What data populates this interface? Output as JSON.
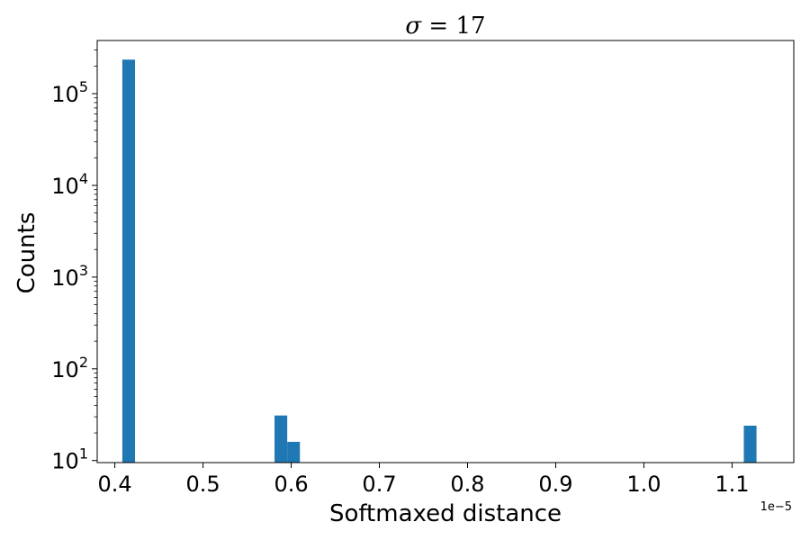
{
  "chart_data": {
    "type": "bar",
    "title": {
      "symbol": "σ",
      "operator": " = ",
      "value": "17"
    },
    "xlabel": "Softmaxed distance",
    "ylabel": "Counts",
    "x_offset_label": "1e−5",
    "xlim": [
      0.38,
      1.17
    ],
    "ylim": [
      9.5,
      380000
    ],
    "yscale": "log",
    "grid": false,
    "bar_color": "#1f77b4",
    "bar_width": 0.0144,
    "bars": [
      {
        "x": 0.4157,
        "count": 235000
      },
      {
        "x": 0.5883,
        "count": 31
      },
      {
        "x": 0.6027,
        "count": 16
      },
      {
        "x": 1.1205,
        "count": 24
      }
    ],
    "x_ticks": [
      {
        "value": 0.4,
        "label": "0.4"
      },
      {
        "value": 0.5,
        "label": "0.5"
      },
      {
        "value": 0.6,
        "label": "0.6"
      },
      {
        "value": 0.7,
        "label": "0.7"
      },
      {
        "value": 0.8,
        "label": "0.8"
      },
      {
        "value": 0.9,
        "label": "0.9"
      },
      {
        "value": 1.0,
        "label": "1.0"
      },
      {
        "value": 1.1,
        "label": "1.1"
      }
    ],
    "y_ticks": [
      {
        "value": 10,
        "base": "10",
        "exp": "1"
      },
      {
        "value": 100,
        "base": "10",
        "exp": "2"
      },
      {
        "value": 1000,
        "base": "10",
        "exp": "3"
      },
      {
        "value": 10000,
        "base": "10",
        "exp": "4"
      },
      {
        "value": 100000,
        "base": "10",
        "exp": "5"
      }
    ]
  }
}
